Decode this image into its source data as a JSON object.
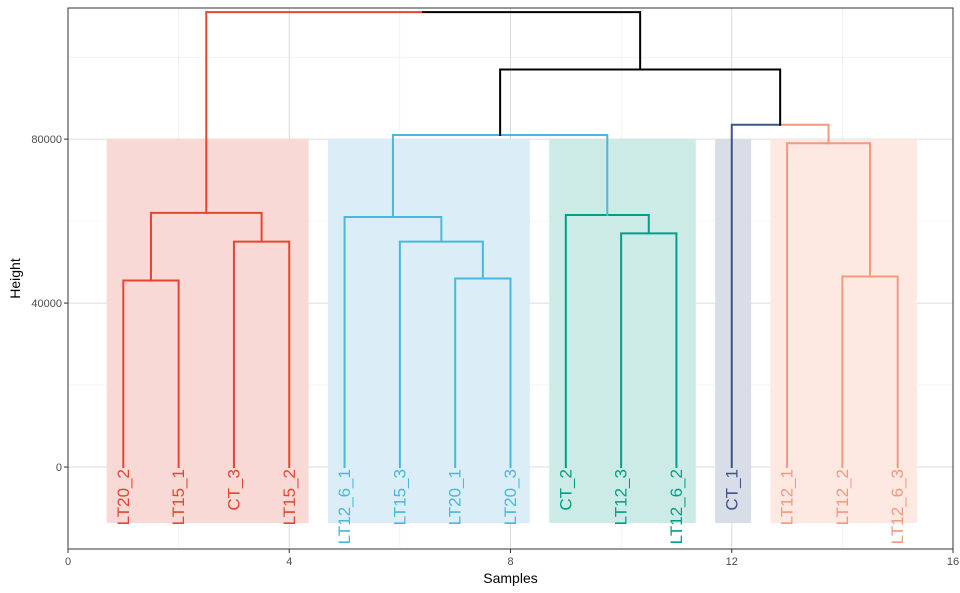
{
  "chart_data": {
    "type": "dendrogram",
    "title": "",
    "xlabel": "Samples",
    "ylabel": "Height",
    "xlim": [
      0,
      16
    ],
    "ylim": [
      -20000,
      112000
    ],
    "x_ticks": [
      0,
      4,
      8,
      12,
      16
    ],
    "x_tick_labels": [
      "0",
      "4",
      "8",
      "12",
      "16"
    ],
    "y_ticks": [
      0,
      40000,
      80000
    ],
    "y_tick_labels": [
      "0",
      "40000",
      "80000"
    ],
    "grid": true,
    "cut_height": 80000,
    "leaves": [
      {
        "label": "LT20_2",
        "x": 1,
        "cluster": 0
      },
      {
        "label": "LT15_1",
        "x": 2,
        "cluster": 0
      },
      {
        "label": "CT_3",
        "x": 3,
        "cluster": 0
      },
      {
        "label": "LT15_2",
        "x": 4,
        "cluster": 0
      },
      {
        "label": "LT12_6_1",
        "x": 5,
        "cluster": 1
      },
      {
        "label": "LT15_3",
        "x": 6,
        "cluster": 1
      },
      {
        "label": "LT20_1",
        "x": 7,
        "cluster": 1
      },
      {
        "label": "LT20_3",
        "x": 8,
        "cluster": 1
      },
      {
        "label": "CT_2",
        "x": 9,
        "cluster": 2
      },
      {
        "label": "LT12_3",
        "x": 10,
        "cluster": 2
      },
      {
        "label": "LT12_6_2",
        "x": 11,
        "cluster": 2
      },
      {
        "label": "CT_1",
        "x": 12,
        "cluster": 3
      },
      {
        "label": "LT12_1",
        "x": 13,
        "cluster": 4
      },
      {
        "label": "LT12_2",
        "x": 14,
        "cluster": 4
      },
      {
        "label": "LT12_6_3",
        "x": 15,
        "cluster": 4
      }
    ],
    "clusters": [
      {
        "id": 0,
        "color": "#E7452F",
        "fill": "#F8D9D5",
        "x_range": [
          0.7,
          4.35
        ]
      },
      {
        "id": 1,
        "color": "#48B8DC",
        "fill": "#DBEEF7",
        "x_range": [
          4.7,
          8.35
        ]
      },
      {
        "id": 2,
        "color": "#009F86",
        "fill": "#CCEBE6",
        "x_range": [
          8.7,
          11.35
        ]
      },
      {
        "id": 3,
        "color": "#3C5488",
        "fill": "#D8DDE7",
        "x_range": [
          11.7,
          12.35
        ]
      },
      {
        "id": 4,
        "color": "#F29A7F",
        "fill": "#FDE8E2",
        "x_range": [
          12.7,
          15.35
        ]
      }
    ],
    "merges": [
      {
        "left_x": 1,
        "left_y": 0,
        "right_x": 2,
        "right_y": 0,
        "height": 45500,
        "color": "#E7452F"
      },
      {
        "left_x": 3,
        "left_y": 0,
        "right_x": 4,
        "right_y": 0,
        "height": 55000,
        "color": "#E7452F"
      },
      {
        "left_x": 1.5,
        "left_y": 45500,
        "right_x": 3.5,
        "right_y": 55000,
        "height": 62000,
        "color": "#E7452F"
      },
      {
        "left_x": 7,
        "left_y": 0,
        "right_x": 8,
        "right_y": 0,
        "height": 46000,
        "color": "#48B8DC"
      },
      {
        "left_x": 6,
        "left_y": 0,
        "right_x": 7.5,
        "right_y": 46000,
        "height": 55000,
        "color": "#48B8DC"
      },
      {
        "left_x": 5,
        "left_y": 0,
        "right_x": 6.75,
        "right_y": 55000,
        "height": 61000,
        "color": "#48B8DC"
      },
      {
        "left_x": 10,
        "left_y": 0,
        "right_x": 11,
        "right_y": 0,
        "height": 57000,
        "color": "#009F86"
      },
      {
        "left_x": 9,
        "left_y": 0,
        "right_x": 10.5,
        "right_y": 57000,
        "height": 61500,
        "color": "#009F86"
      },
      {
        "left_x": 5.875,
        "left_y": 61000,
        "right_x": 9.75,
        "right_y": 61500,
        "height": 81000,
        "color": "#48B8DC"
      },
      {
        "left_x": 14,
        "left_y": 0,
        "right_x": 15,
        "right_y": 0,
        "height": 46500,
        "color": "#F29A7F"
      },
      {
        "left_x": 13,
        "left_y": 0,
        "right_x": 14.5,
        "right_y": 46500,
        "height": 79000,
        "color": "#F29A7F"
      },
      {
        "left_x": 12,
        "left_y": 0,
        "right_x": 13.75,
        "right_y": 79000,
        "height": 83500,
        "color": "#3C5488",
        "right_color": "#F29A7F"
      },
      {
        "left_x": 7.8125,
        "left_y": 81000,
        "right_x": 12.875,
        "right_y": 83500,
        "height": 97000,
        "color": "#000000"
      },
      {
        "left_x": 2.5,
        "left_y": 62000,
        "right_x": 10.34375,
        "right_y": 97000,
        "height": 111000,
        "color": "#000000",
        "left_color": "#E7452F"
      }
    ]
  }
}
